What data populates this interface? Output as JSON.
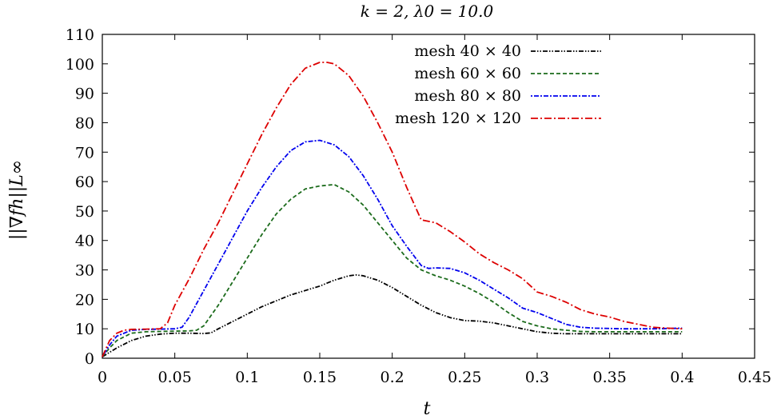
{
  "chart_data": {
    "type": "line",
    "title": "k = 2, λ0 = 10.0",
    "xlabel": "t",
    "ylabel": "||∇fh||L∞",
    "xlim": [
      0,
      0.45
    ],
    "ylim": [
      0,
      110
    ],
    "xticks": [
      0,
      0.05,
      0.1,
      0.15,
      0.2,
      0.25,
      0.3,
      0.35,
      0.4,
      0.45
    ],
    "xtick_labels": [
      "0",
      "0.05",
      "0.1",
      "0.15",
      "0.2",
      "0.25",
      "0.3",
      "0.35",
      "0.4",
      "0.45"
    ],
    "yticks": [
      0,
      10,
      20,
      30,
      40,
      50,
      60,
      70,
      80,
      90,
      100,
      110
    ],
    "ytick_labels": [
      "0",
      "10",
      "20",
      "30",
      "40",
      "50",
      "60",
      "70",
      "80",
      "90",
      "100",
      "110"
    ],
    "legend_position": "top-right",
    "series": [
      {
        "name": "mesh 40 × 40",
        "color": "#000000",
        "dash": "6,2,1.5,2,1.5,2",
        "x": [
          0,
          0.005,
          0.01,
          0.02,
          0.03,
          0.04,
          0.05,
          0.06,
          0.07,
          0.075,
          0.08,
          0.09,
          0.1,
          0.11,
          0.12,
          0.13,
          0.14,
          0.15,
          0.16,
          0.17,
          0.175,
          0.18,
          0.19,
          0.2,
          0.21,
          0.22,
          0.23,
          0.24,
          0.25,
          0.26,
          0.27,
          0.28,
          0.29,
          0.3,
          0.31,
          0.32,
          0.34,
          0.36,
          0.38,
          0.4
        ],
        "y": [
          0.5,
          2,
          3.5,
          6,
          7.5,
          8.2,
          8.5,
          8.5,
          8.4,
          8.6,
          10,
          12.5,
          15,
          17.5,
          19.5,
          21.5,
          23,
          24.5,
          26.5,
          28,
          28.3,
          28,
          26.5,
          24,
          21,
          18,
          15.5,
          13.8,
          12.8,
          12.6,
          12,
          11,
          10,
          9,
          8.5,
          8.3,
          8.3,
          8.3,
          8.3,
          8.3
        ]
      },
      {
        "name": "mesh 60 × 60",
        "color": "#1b6b1b",
        "dash": "5,3",
        "x": [
          0,
          0.005,
          0.01,
          0.02,
          0.03,
          0.04,
          0.05,
          0.06,
          0.065,
          0.07,
          0.08,
          0.09,
          0.1,
          0.11,
          0.12,
          0.13,
          0.14,
          0.15,
          0.16,
          0.17,
          0.18,
          0.19,
          0.2,
          0.21,
          0.22,
          0.225,
          0.23,
          0.24,
          0.25,
          0.26,
          0.27,
          0.28,
          0.29,
          0.3,
          0.31,
          0.32,
          0.33,
          0.34,
          0.36,
          0.38,
          0.4
        ],
        "y": [
          0.5,
          3.5,
          6,
          8.5,
          9,
          9.1,
          9.2,
          9.3,
          9.5,
          11,
          18,
          26,
          34,
          42,
          49,
          54,
          57.5,
          58.5,
          59,
          56.5,
          52,
          46,
          40,
          34,
          30,
          29,
          28,
          26.5,
          24.5,
          22,
          19,
          15.5,
          12.5,
          11,
          10,
          9.5,
          9.1,
          9,
          9,
          9,
          9
        ]
      },
      {
        "name": "mesh 80 × 80",
        "color": "#0000ee",
        "dash": "2,2,6,2",
        "x": [
          0,
          0.005,
          0.01,
          0.02,
          0.03,
          0.04,
          0.05,
          0.055,
          0.06,
          0.07,
          0.08,
          0.09,
          0.1,
          0.11,
          0.12,
          0.13,
          0.14,
          0.15,
          0.16,
          0.17,
          0.18,
          0.19,
          0.2,
          0.21,
          0.22,
          0.225,
          0.23,
          0.24,
          0.25,
          0.26,
          0.27,
          0.28,
          0.29,
          0.3,
          0.31,
          0.32,
          0.33,
          0.34,
          0.35,
          0.36,
          0.38,
          0.4
        ],
        "y": [
          0.5,
          4.5,
          7.5,
          9.5,
          9.8,
          9.9,
          10,
          10.5,
          14,
          23,
          32,
          41,
          50,
          58,
          65,
          70.5,
          73.5,
          74,
          72.5,
          68.5,
          62,
          54,
          45,
          38,
          31.5,
          30.5,
          30.7,
          30.5,
          29,
          26.5,
          23.5,
          20.5,
          17,
          15.5,
          13.5,
          11.5,
          10.5,
          10.2,
          10.1,
          10,
          10,
          10.2
        ]
      },
      {
        "name": "mesh 120 × 120",
        "color": "#dd0000",
        "dash": "9,3,2,3",
        "x": [
          0,
          0.005,
          0.01,
          0.015,
          0.02,
          0.03,
          0.04,
          0.045,
          0.05,
          0.06,
          0.07,
          0.08,
          0.09,
          0.1,
          0.11,
          0.12,
          0.13,
          0.14,
          0.15,
          0.155,
          0.16,
          0.17,
          0.18,
          0.19,
          0.2,
          0.21,
          0.22,
          0.23,
          0.24,
          0.25,
          0.26,
          0.27,
          0.28,
          0.29,
          0.3,
          0.31,
          0.32,
          0.33,
          0.34,
          0.35,
          0.36,
          0.37,
          0.38,
          0.39,
          0.4
        ],
        "y": [
          0.5,
          6,
          8.5,
          9.5,
          9.8,
          9.9,
          10,
          12,
          18,
          27,
          37,
          46,
          56,
          66,
          76,
          85,
          93,
          98.5,
          100.5,
          100.5,
          100,
          96,
          89,
          80,
          70,
          58,
          47,
          46,
          43,
          39.5,
          35.5,
          32.5,
          30,
          27,
          22.5,
          21,
          19,
          16.5,
          15,
          14,
          12.5,
          11.5,
          10.5,
          10.2,
          10
        ]
      }
    ]
  }
}
